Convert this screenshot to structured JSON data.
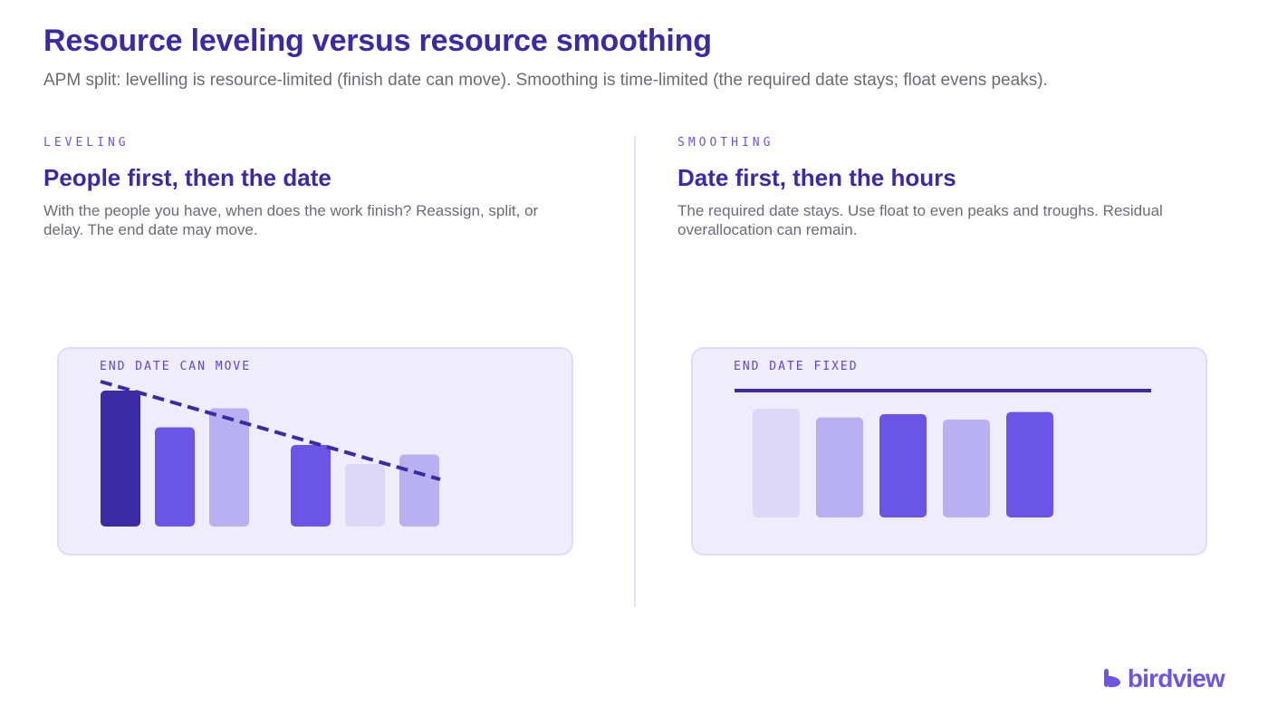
{
  "header": {
    "title": "Resource leveling versus resource smoothing",
    "subtitle": "APM split: levelling is resource-limited (finish date can move). Smoothing is time-limited (the required date stays; float evens peaks)."
  },
  "leveling": {
    "eyebrow": "LEVELING",
    "heading": "People first, then the date",
    "description": "With the people you have, when does the work finish? Reassign, split, or delay. The end date may move.",
    "card_label": "END DATE CAN MOVE",
    "bar_levels": [
      1.0,
      0.73,
      0.87,
      0.6,
      0.46,
      0.53
    ],
    "bar_tones": [
      "dark",
      "mid",
      "light",
      "mid",
      "pale",
      "light"
    ],
    "trend": "dashed declining line"
  },
  "smoothing": {
    "eyebrow": "SMOOTHING",
    "heading": "Date first, then the hours",
    "description": "The required date stays. Use float to even peaks and troughs. Residual overallocation can remain.",
    "card_label": "END DATE FIXED",
    "bar_levels": [
      1.0,
      0.92,
      0.95,
      0.9,
      0.97
    ],
    "bar_tones": [
      "pale",
      "light",
      "mid",
      "light",
      "mid"
    ],
    "limit": "solid fixed line"
  },
  "colors": {
    "dark": "#3b2aa6",
    "mid": "#6a55e8",
    "light": "#b9b0f2",
    "pale": "#ddd8f8",
    "card_bg": "#efedfc",
    "title": "#3b2aa6"
  },
  "brand": {
    "logo_text": "birdview",
    "logo_icon": "birdview-logo-icon"
  }
}
